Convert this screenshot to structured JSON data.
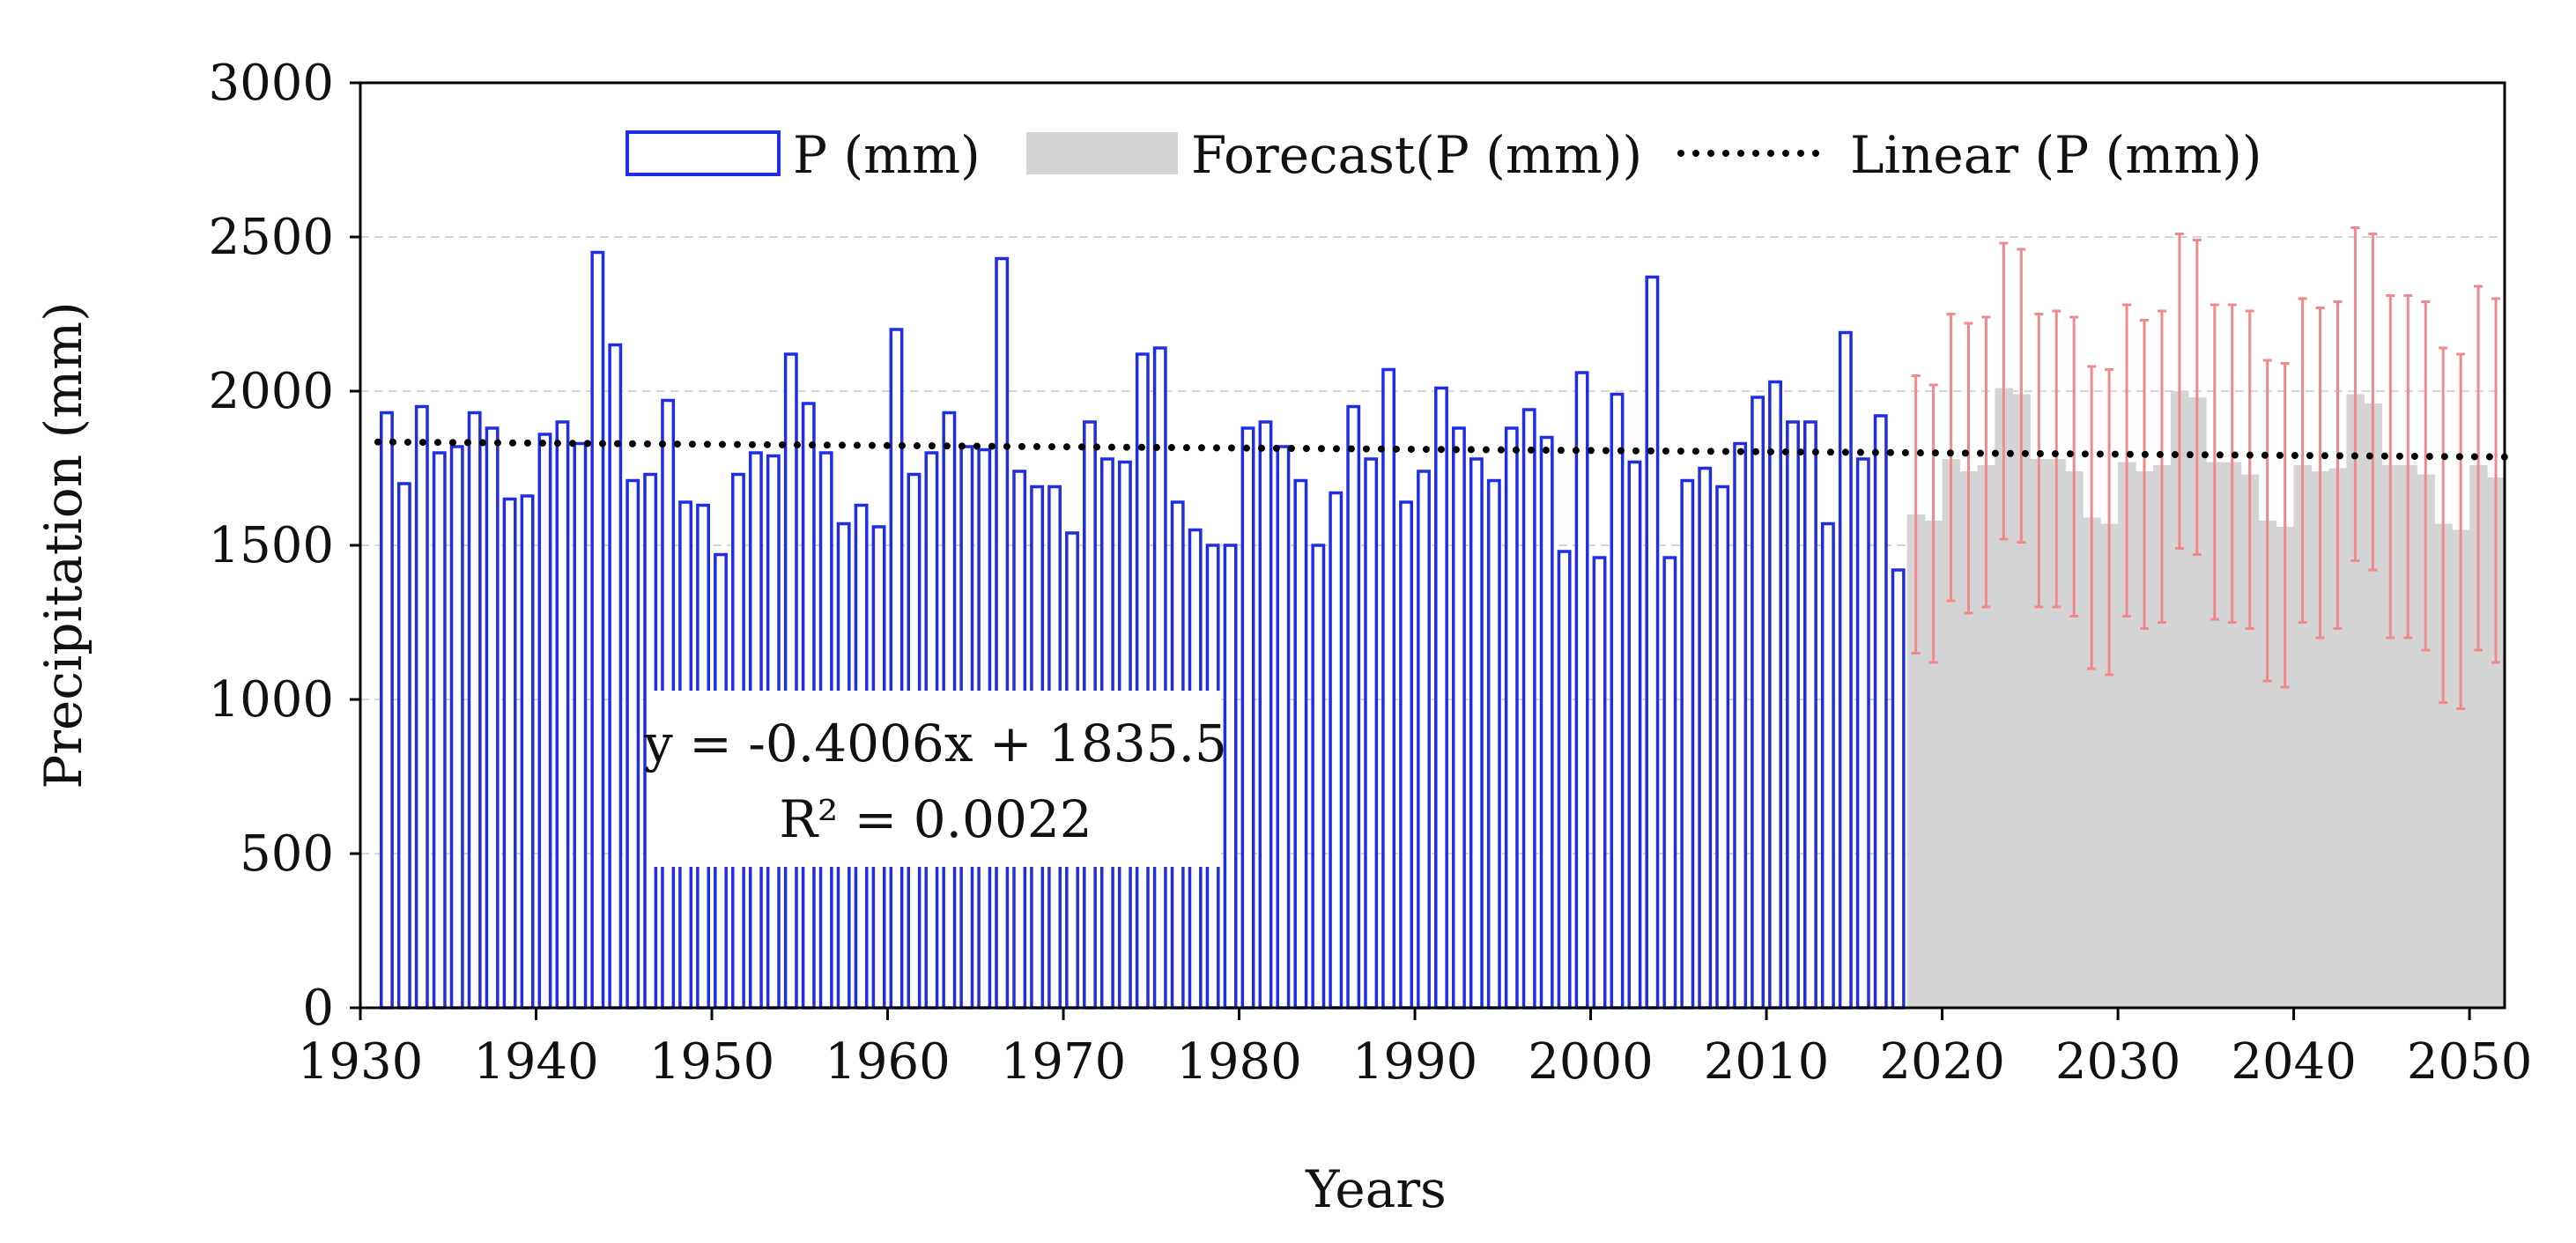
{
  "chart_data": {
    "type": "bar",
    "title": "",
    "xlabel": "Years",
    "ylabel": "Precipitation (mm)",
    "xlim": [
      1930,
      2052
    ],
    "ylim": [
      0,
      3000
    ],
    "xticks": [
      "1930",
      "1940",
      "1950",
      "1960",
      "1970",
      "1980",
      "1990",
      "2000",
      "2010",
      "2020",
      "2030",
      "2040",
      "2050"
    ],
    "yticks": [
      "0",
      "500",
      "1000",
      "1500",
      "2000",
      "2500",
      "3000"
    ],
    "grid": true,
    "legend": {
      "position": "top-center",
      "items": [
        {
          "label": "P (mm)",
          "kind": "bar-outline"
        },
        {
          "label": "Forecast(P (mm))",
          "kind": "bar-filled"
        },
        {
          "label": "Linear (P (mm))",
          "kind": "dotted-line"
        }
      ]
    },
    "colors": {
      "observed": "#1f2ee6",
      "forecast": "#d4d4d4",
      "errorbar": "#f08a8a",
      "trend": "#000000",
      "grid": "#d6d6d6"
    },
    "series": [
      {
        "name": "P (mm)",
        "x": [
          1931,
          1932,
          1933,
          1934,
          1935,
          1936,
          1937,
          1938,
          1939,
          1940,
          1941,
          1942,
          1943,
          1944,
          1945,
          1946,
          1947,
          1948,
          1949,
          1950,
          1951,
          1952,
          1953,
          1954,
          1955,
          1956,
          1957,
          1958,
          1959,
          1960,
          1961,
          1962,
          1963,
          1964,
          1965,
          1966,
          1967,
          1968,
          1969,
          1970,
          1971,
          1972,
          1973,
          1974,
          1975,
          1976,
          1977,
          1978,
          1979,
          1980,
          1981,
          1982,
          1983,
          1984,
          1985,
          1986,
          1987,
          1988,
          1989,
          1990,
          1991,
          1992,
          1993,
          1994,
          1995,
          1996,
          1997,
          1998,
          1999,
          2000,
          2001,
          2002,
          2003,
          2004,
          2005,
          2006,
          2007,
          2008,
          2009,
          2010,
          2011,
          2012,
          2013,
          2014,
          2015,
          2016,
          2017
        ],
        "values": [
          1930,
          1700,
          1950,
          1800,
          1820,
          1930,
          1880,
          1650,
          1660,
          1860,
          1900,
          1830,
          2450,
          2150,
          1710,
          1730,
          1970,
          1640,
          1630,
          1470,
          1730,
          1800,
          1790,
          2120,
          1960,
          1800,
          1570,
          1630,
          1560,
          2200,
          1730,
          1800,
          1930,
          1820,
          1810,
          2430,
          1740,
          1690,
          1690,
          1540,
          1900,
          1780,
          1770,
          2120,
          2140,
          1640,
          1550,
          1500,
          1500,
          1880,
          1900,
          1820,
          1710,
          1500,
          1670,
          1950,
          1780,
          2070,
          1640,
          1740,
          2010,
          1880,
          1780,
          1710,
          1880,
          1940,
          1850,
          1480,
          2060,
          1460,
          1990,
          1770,
          2370,
          1460,
          1710,
          1750,
          1690,
          1830,
          1980,
          2030,
          1900,
          1900,
          1570,
          2190,
          1780,
          1920,
          1420
        ]
      },
      {
        "name": "Forecast(P (mm))",
        "x": [
          2018,
          2019,
          2020,
          2021,
          2022,
          2023,
          2024,
          2025,
          2026,
          2027,
          2028,
          2029,
          2030,
          2031,
          2032,
          2033,
          2034,
          2035,
          2036,
          2037,
          2038,
          2039,
          2040,
          2041,
          2042,
          2043,
          2044,
          2045,
          2046,
          2047,
          2048,
          2049,
          2050,
          2051
        ],
        "values": [
          1600,
          1580,
          1780,
          1740,
          1760,
          2010,
          1990,
          1780,
          1780,
          1740,
          1590,
          1570,
          1770,
          1740,
          1760,
          2000,
          1980,
          1770,
          1770,
          1730,
          1580,
          1560,
          1760,
          1740,
          1750,
          1990,
          1960,
          1760,
          1760,
          1730,
          1570,
          1550,
          1760,
          1720
        ],
        "upper": [
          2050,
          2020,
          2250,
          2220,
          2240,
          2480,
          2460,
          2250,
          2260,
          2240,
          2080,
          2070,
          2280,
          2230,
          2260,
          2510,
          2490,
          2280,
          2280,
          2260,
          2100,
          2090,
          2300,
          2270,
          2290,
          2530,
          2510,
          2310,
          2310,
          2290,
          2140,
          2120,
          2340,
          2300
        ],
        "lower": [
          1150,
          1120,
          1320,
          1280,
          1300,
          1520,
          1510,
          1300,
          1300,
          1270,
          1100,
          1080,
          1270,
          1230,
          1250,
          1490,
          1470,
          1260,
          1250,
          1230,
          1060,
          1040,
          1250,
          1200,
          1230,
          1450,
          1420,
          1200,
          1200,
          1160,
          990,
          970,
          1160,
          1120
        ]
      }
    ],
    "trendline": {
      "name": "Linear (P (mm))",
      "slope": -0.4006,
      "intercept": 1835.5,
      "x_index_start": 1931,
      "x_range": [
        1931,
        2052
      ]
    },
    "annotations": {
      "equation": "y = -0.4006x + 1835.5",
      "r_squared": "R² = 0.0022"
    }
  }
}
